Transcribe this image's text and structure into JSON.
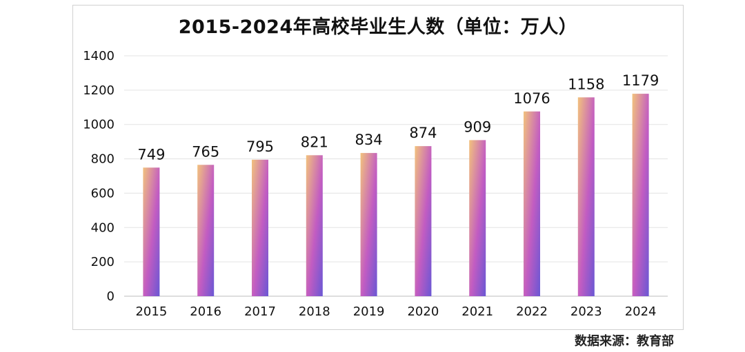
{
  "chart_data": {
    "type": "bar",
    "title": "2015-2024年高校毕业生人数（单位：万人）",
    "categories": [
      "2015",
      "2016",
      "2017",
      "2018",
      "2019",
      "2020",
      "2021",
      "2022",
      "2023",
      "2024"
    ],
    "values": [
      749,
      765,
      795,
      821,
      834,
      874,
      909,
      1076,
      1158,
      1179
    ],
    "xlabel": "",
    "ylabel": "",
    "ylim": [
      0,
      1400
    ],
    "yticks": [
      0,
      200,
      400,
      600,
      800,
      1000,
      1200,
      1400
    ],
    "grid": true,
    "bar_gradient": [
      "#f2c27d",
      "#c25cc2",
      "#6a57d4"
    ]
  },
  "source": "数据来源：教育部"
}
